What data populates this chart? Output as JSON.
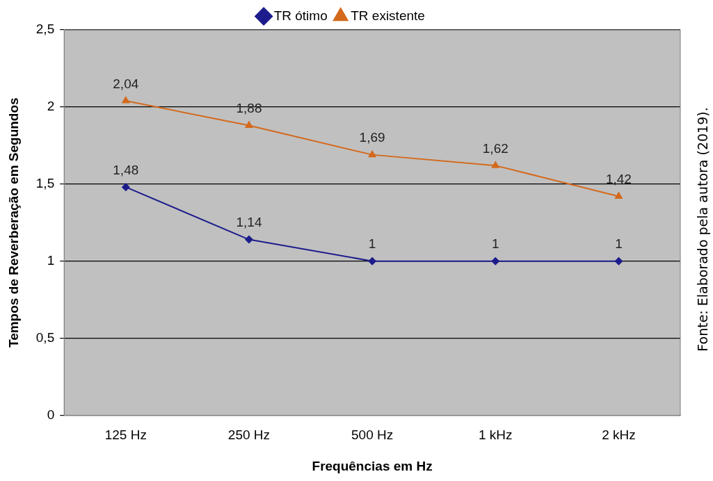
{
  "chart_data": {
    "type": "line",
    "xlabel": "Frequências em Hz",
    "ylabel": "Tempos de Reverberação em Segundos",
    "categories": [
      "125 Hz",
      "250 Hz",
      "500 Hz",
      "1 kHz",
      "2 kHz"
    ],
    "series": [
      {
        "name": "TR ótimo",
        "color": "#1c1c8c",
        "marker": "diamond",
        "values": [
          1.48,
          1.14,
          1,
          1,
          1
        ],
        "value_labels": [
          "1,48",
          "1,14",
          "1",
          "1",
          "1"
        ]
      },
      {
        "name": "TR existente",
        "color": "#d4691c",
        "marker": "triangle",
        "values": [
          2.04,
          1.88,
          1.69,
          1.62,
          1.42
        ],
        "value_labels": [
          "2,04",
          "1,88",
          "1,69",
          "1,62",
          "1,42"
        ]
      }
    ],
    "ylim": [
      0,
      2.5
    ],
    "yticks": [
      {
        "value": 0,
        "label": "0"
      },
      {
        "value": 0.5,
        "label": "0,5"
      },
      {
        "value": 1,
        "label": "1"
      },
      {
        "value": 1.5,
        "label": "1,5"
      },
      {
        "value": 2,
        "label": "2"
      },
      {
        "value": 2.5,
        "label": "2,5"
      }
    ],
    "grid": "y",
    "legend": "top",
    "line_style": "solid",
    "annotations": [
      "Fonte: Elaborado pela autora (2019)."
    ]
  }
}
